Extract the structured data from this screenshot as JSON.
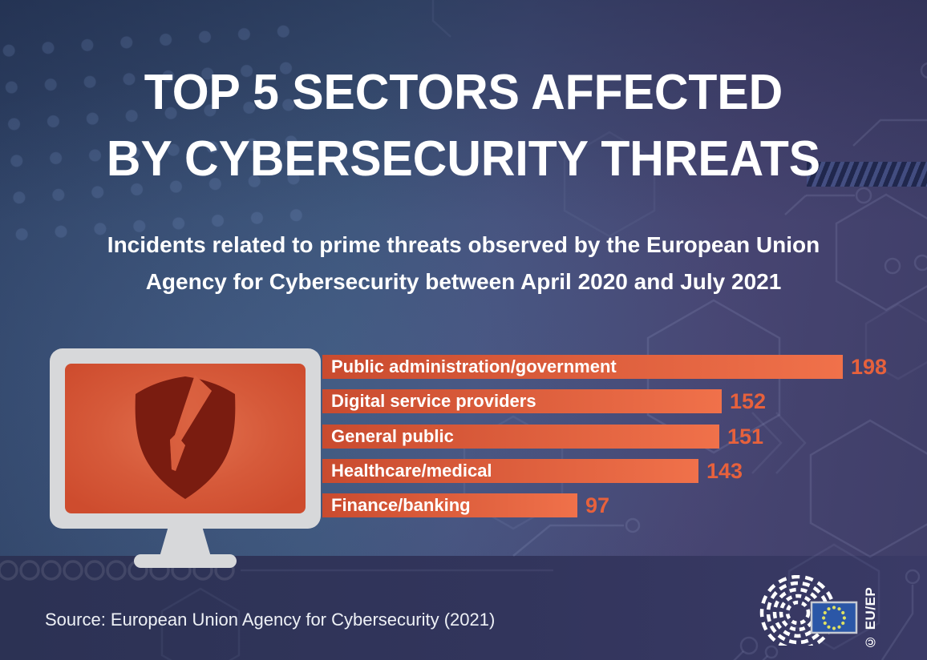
{
  "header": {
    "title_line1": "TOP 5 SECTORS AFFECTED",
    "title_line2": "BY CYBERSECURITY THREATS",
    "subtitle_line1": "Incidents related to prime threats observed by the European Union",
    "subtitle_line2": "Agency for Cybersecurity between April 2020 and July 2021"
  },
  "chart_data": {
    "type": "bar",
    "orientation": "horizontal",
    "title": "Top 5 sectors affected by cybersecurity threats",
    "categories": [
      "Public administration/government",
      "Digital service providers",
      "General public",
      "Healthcare/medical",
      "Finance/banking"
    ],
    "values": [
      198,
      152,
      151,
      143,
      97
    ],
    "value_labels": [
      "198",
      "152",
      "151",
      "143",
      "97"
    ],
    "xlim": [
      0,
      198
    ],
    "grid": false,
    "legend_position": "none",
    "bar_gradient": [
      "#c94b2f",
      "#f0714a"
    ],
    "label_color": "#ffffff",
    "value_color": "#e7613c"
  },
  "footer": {
    "source": "Source: European Union Agency for Cybersecurity (2021)",
    "credit": "© EU/EP"
  },
  "icons": {
    "monitor": "monitor-broken-shield-icon",
    "ep_logo": "european-parliament-hemicycle-logo",
    "eu_flag": "eu-flag-icon"
  },
  "colors": {
    "background_left": "#2e4164",
    "background_mid": "#3c5378",
    "background_right": "#3f3e68",
    "bottom_band": "#2d3457",
    "screen_orange": "#d65a3a",
    "shield_dark_red": "#7a1c10",
    "monitor_frame": "#d7d8da",
    "flag_blue": "#2b57a7",
    "star_yellow": "#dde063"
  }
}
